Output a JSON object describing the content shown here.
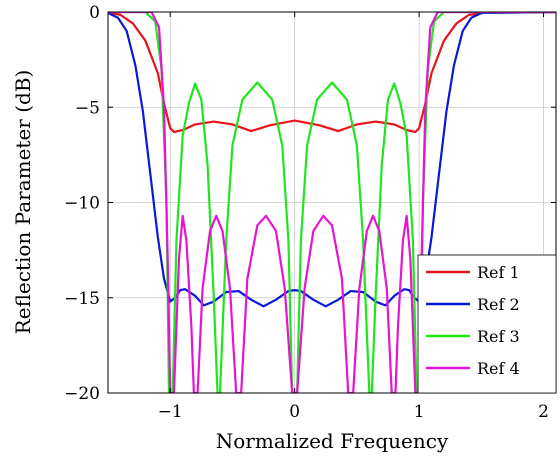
{
  "chart_data": {
    "type": "line",
    "title": "",
    "xlabel": "Normalized Frequency",
    "ylabel": "Reflection Parameter (dB)",
    "xlim": [
      -1.5,
      2.1
    ],
    "ylim": [
      -20,
      0
    ],
    "xticks": [
      -1,
      0,
      1,
      2
    ],
    "xtick_labels": [
      "−1",
      "0",
      "1",
      "2"
    ],
    "yticks": [
      0,
      -5,
      -10,
      -15,
      -20
    ],
    "ytick_labels": [
      "0",
      "−5",
      "−10",
      "−15",
      "−20"
    ],
    "grid": true,
    "legend_position": "bottom-right",
    "series": [
      {
        "name": "Ref 1",
        "color": "#e8141c",
        "points": [
          [
            -1.5,
            -0.02
          ],
          [
            -1.4,
            -0.15
          ],
          [
            -1.3,
            -0.6
          ],
          [
            -1.2,
            -1.5
          ],
          [
            -1.1,
            -3.2
          ],
          [
            -1.05,
            -4.8
          ],
          [
            -1.0,
            -6.1
          ],
          [
            -0.97,
            -6.3
          ],
          [
            -0.9,
            -6.2
          ],
          [
            -0.8,
            -5.9
          ],
          [
            -0.65,
            -5.75
          ],
          [
            -0.5,
            -5.9
          ],
          [
            -0.35,
            -6.25
          ],
          [
            -0.2,
            -5.95
          ],
          [
            0.0,
            -5.7
          ],
          [
            0.2,
            -5.95
          ],
          [
            0.35,
            -6.25
          ],
          [
            0.5,
            -5.9
          ],
          [
            0.65,
            -5.75
          ],
          [
            0.8,
            -5.9
          ],
          [
            0.9,
            -6.2
          ],
          [
            0.97,
            -6.3
          ],
          [
            1.0,
            -6.1
          ],
          [
            1.05,
            -4.8
          ],
          [
            1.1,
            -3.2
          ],
          [
            1.2,
            -1.5
          ],
          [
            1.3,
            -0.6
          ],
          [
            1.4,
            -0.15
          ],
          [
            1.55,
            -0.03
          ],
          [
            2.1,
            0.0
          ]
        ]
      },
      {
        "name": "Ref 2",
        "color": "#0a18d8",
        "points": [
          [
            -1.5,
            -0.05
          ],
          [
            -1.42,
            -0.3
          ],
          [
            -1.35,
            -1.0
          ],
          [
            -1.28,
            -2.8
          ],
          [
            -1.22,
            -5.2
          ],
          [
            -1.16,
            -8.5
          ],
          [
            -1.1,
            -11.8
          ],
          [
            -1.05,
            -14.0
          ],
          [
            -1.0,
            -15.2
          ],
          [
            -0.96,
            -15.0
          ],
          [
            -0.92,
            -14.6
          ],
          [
            -0.88,
            -14.55
          ],
          [
            -0.8,
            -14.9
          ],
          [
            -0.73,
            -15.4
          ],
          [
            -0.65,
            -15.2
          ],
          [
            -0.55,
            -14.7
          ],
          [
            -0.45,
            -14.65
          ],
          [
            -0.35,
            -15.1
          ],
          [
            -0.25,
            -15.45
          ],
          [
            -0.15,
            -15.1
          ],
          [
            -0.05,
            -14.65
          ],
          [
            0.0,
            -14.6
          ],
          [
            0.05,
            -14.65
          ],
          [
            0.15,
            -15.1
          ],
          [
            0.25,
            -15.45
          ],
          [
            0.35,
            -15.1
          ],
          [
            0.45,
            -14.65
          ],
          [
            0.55,
            -14.7
          ],
          [
            0.65,
            -15.2
          ],
          [
            0.73,
            -15.4
          ],
          [
            0.8,
            -14.9
          ],
          [
            0.88,
            -14.55
          ],
          [
            0.92,
            -14.6
          ],
          [
            0.96,
            -15.0
          ],
          [
            1.0,
            -15.2
          ],
          [
            1.05,
            -14.0
          ],
          [
            1.1,
            -11.8
          ],
          [
            1.16,
            -8.5
          ],
          [
            1.22,
            -5.2
          ],
          [
            1.28,
            -2.8
          ],
          [
            1.35,
            -1.0
          ],
          [
            1.42,
            -0.3
          ],
          [
            1.5,
            -0.05
          ],
          [
            2.1,
            0.0
          ]
        ]
      },
      {
        "name": "Ref 3",
        "color": "#1ee61e",
        "points": [
          [
            -1.5,
            0.0
          ],
          [
            -1.2,
            0.0
          ],
          [
            -1.12,
            -0.5
          ],
          [
            -1.07,
            -3.0
          ],
          [
            -1.03,
            -10.0
          ],
          [
            -1.01,
            -20.0
          ],
          [
            -0.98,
            -20.0
          ],
          [
            -0.95,
            -12.0
          ],
          [
            -0.9,
            -6.5
          ],
          [
            -0.85,
            -4.8
          ],
          [
            -0.8,
            -3.75
          ],
          [
            -0.75,
            -4.6
          ],
          [
            -0.7,
            -8.0
          ],
          [
            -0.65,
            -15.0
          ],
          [
            -0.62,
            -20.0
          ],
          [
            -0.6,
            -20.0
          ],
          [
            -0.55,
            -12.0
          ],
          [
            -0.5,
            -7.0
          ],
          [
            -0.42,
            -4.6
          ],
          [
            -0.3,
            -3.7
          ],
          [
            -0.18,
            -4.6
          ],
          [
            -0.1,
            -7.0
          ],
          [
            -0.05,
            -12.0
          ],
          [
            -0.02,
            -20.0
          ],
          [
            0.02,
            -20.0
          ],
          [
            0.05,
            -12.0
          ],
          [
            0.1,
            -7.0
          ],
          [
            0.18,
            -4.6
          ],
          [
            0.3,
            -3.7
          ],
          [
            0.42,
            -4.6
          ],
          [
            0.5,
            -7.0
          ],
          [
            0.55,
            -12.0
          ],
          [
            0.6,
            -20.0
          ],
          [
            0.62,
            -20.0
          ],
          [
            0.65,
            -15.0
          ],
          [
            0.7,
            -8.0
          ],
          [
            0.75,
            -4.6
          ],
          [
            0.8,
            -3.75
          ],
          [
            0.85,
            -4.8
          ],
          [
            0.9,
            -6.5
          ],
          [
            0.95,
            -12.0
          ],
          [
            0.98,
            -20.0
          ],
          [
            1.01,
            -20.0
          ],
          [
            1.03,
            -10.0
          ],
          [
            1.07,
            -3.0
          ],
          [
            1.12,
            -0.5
          ],
          [
            1.2,
            0.0
          ],
          [
            2.1,
            0.0
          ]
        ]
      },
      {
        "name": "Ref 4",
        "color": "#e614d2",
        "points": [
          [
            -1.5,
            0.0
          ],
          [
            -1.15,
            0.0
          ],
          [
            -1.09,
            -0.8
          ],
          [
            -1.05,
            -5.0
          ],
          [
            -1.02,
            -13.0
          ],
          [
            -1.0,
            -20.0
          ],
          [
            -0.97,
            -20.0
          ],
          [
            -0.93,
            -13.0
          ],
          [
            -0.9,
            -10.7
          ],
          [
            -0.87,
            -12.0
          ],
          [
            -0.83,
            -16.5
          ],
          [
            -0.81,
            -20.0
          ],
          [
            -0.78,
            -20.0
          ],
          [
            -0.74,
            -14.5
          ],
          [
            -0.68,
            -11.5
          ],
          [
            -0.63,
            -10.7
          ],
          [
            -0.58,
            -11.5
          ],
          [
            -0.52,
            -14.5
          ],
          [
            -0.47,
            -20.0
          ],
          [
            -0.43,
            -20.0
          ],
          [
            -0.38,
            -14.0
          ],
          [
            -0.3,
            -11.2
          ],
          [
            -0.23,
            -10.7
          ],
          [
            -0.15,
            -11.5
          ],
          [
            -0.08,
            -14.5
          ],
          [
            -0.02,
            -20.0
          ],
          [
            0.02,
            -20.0
          ],
          [
            0.08,
            -14.5
          ],
          [
            0.15,
            -11.5
          ],
          [
            0.23,
            -10.7
          ],
          [
            0.3,
            -11.2
          ],
          [
            0.38,
            -14.0
          ],
          [
            0.43,
            -20.0
          ],
          [
            0.47,
            -20.0
          ],
          [
            0.52,
            -14.5
          ],
          [
            0.58,
            -11.5
          ],
          [
            0.63,
            -10.7
          ],
          [
            0.68,
            -11.5
          ],
          [
            0.74,
            -14.5
          ],
          [
            0.78,
            -20.0
          ],
          [
            0.81,
            -20.0
          ],
          [
            0.83,
            -16.5
          ],
          [
            0.87,
            -12.0
          ],
          [
            0.9,
            -10.7
          ],
          [
            0.93,
            -13.0
          ],
          [
            0.97,
            -20.0
          ],
          [
            1.0,
            -20.0
          ],
          [
            1.02,
            -13.0
          ],
          [
            1.05,
            -5.0
          ],
          [
            1.09,
            -0.8
          ],
          [
            1.15,
            0.0
          ],
          [
            2.1,
            0.0
          ]
        ]
      }
    ]
  }
}
